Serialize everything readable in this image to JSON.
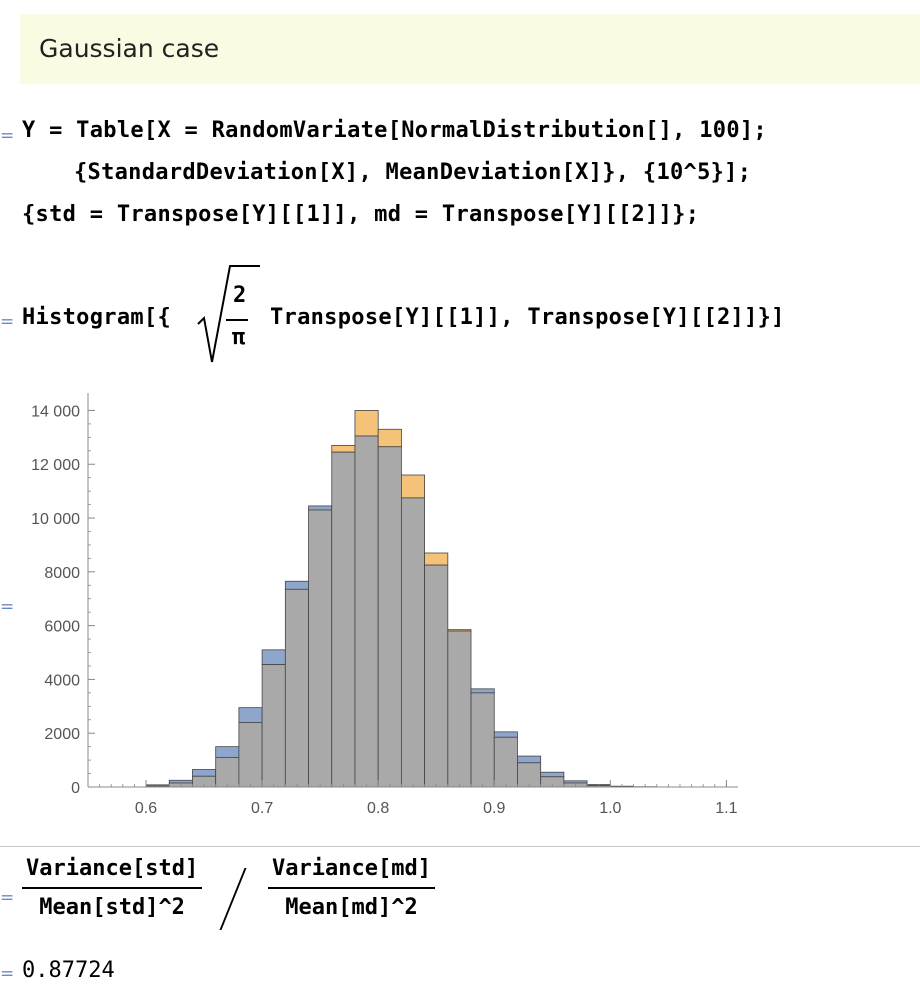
{
  "text_cell": {
    "title": "Gaussian case"
  },
  "cell_brackets": [
    "=",
    "=",
    "=",
    "=",
    "="
  ],
  "input1": {
    "line1": "Y = Table[X = RandomVariate[NormalDistribution[], 100];",
    "line2": "{StandardDeviation[X], MeanDeviation[X]}, {10^5}];",
    "line3": "{std = Transpose[Y][[1]], md = Transpose[Y][[2]]};"
  },
  "input2": {
    "head": "Histogram[{",
    "numerator": "2",
    "denominator": "π",
    "term1": "Transpose[Y][[1]], Transpose[Y][[2]]}]"
  },
  "chart_data": {
    "type": "bar",
    "subtype": "overlapping-histogram",
    "x_ticks": [
      0.6,
      0.7,
      0.8,
      0.9,
      1.0,
      1.1
    ],
    "x_tick_labels": [
      "0.6",
      "0.7",
      "0.8",
      "0.9",
      "1.0",
      "1.1"
    ],
    "y_ticks": [
      0,
      2000,
      4000,
      6000,
      8000,
      10000,
      12000,
      14000
    ],
    "y_tick_labels": [
      "0",
      "2000",
      "4000",
      "6000",
      "8000",
      "10 000",
      "12 000",
      "14 000"
    ],
    "xlim": [
      0.55,
      1.11
    ],
    "ylim": [
      0,
      14500
    ],
    "bin_width": 0.02,
    "bin_starts": [
      0.6,
      0.62,
      0.64,
      0.66,
      0.68,
      0.7,
      0.72,
      0.74,
      0.76,
      0.78,
      0.8,
      0.82,
      0.84,
      0.86,
      0.88,
      0.9,
      0.92,
      0.94,
      0.96,
      0.98,
      1.0,
      1.02
    ],
    "series": [
      {
        "values": [
          80,
          250,
          650,
          1500,
          2950,
          5100,
          7650,
          10450,
          12450,
          13050,
          12650,
          10750,
          8250,
          5800,
          3650,
          2050,
          1150,
          550,
          230,
          90,
          30,
          10
        ],
        "color": "#8fa6cc"
      },
      {
        "values": [
          40,
          150,
          400,
          1100,
          2400,
          4550,
          7350,
          10300,
          12700,
          14000,
          13300,
          11600,
          8700,
          5850,
          3500,
          1850,
          900,
          380,
          150,
          50,
          20,
          5
        ],
        "color": "#f5c27a"
      }
    ],
    "overlap_color": "#a9a9a9"
  },
  "input3": {
    "num1": "Variance[std]",
    "den1": "Mean[std]^2",
    "num2": "Variance[md]",
    "den2": "Mean[md]^2"
  },
  "output3": {
    "value": "0.87724"
  }
}
